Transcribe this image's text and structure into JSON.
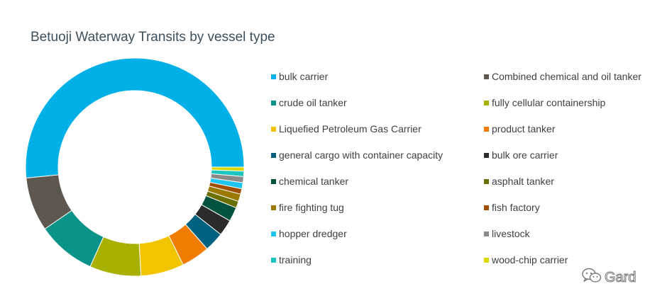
{
  "chart_data": {
    "type": "pie",
    "title": "Betuoji Waterway Transits by vessel type",
    "legend_position": "right",
    "categories": [
      "bulk carrier",
      "Combined chemical and oil tanker",
      "crude oil tanker",
      "fully cellular containership",
      "Liquefied Petroleum Gas Carrier",
      "product tanker",
      "general cargo with container capacity",
      "bulk ore carrier",
      "chemical tanker",
      "asphalt tanker",
      "fire fighting tug",
      "fish factory",
      "hopper dredger",
      "livestock",
      "training",
      "wood-chip carrier"
    ],
    "values": [
      51.6,
      8.0,
      8.7,
      7.6,
      6.4,
      4.2,
      2.9,
      2.4,
      2.1,
      1.0,
      1.1,
      0.8,
      0.9,
      0.9,
      0.8,
      0.6
    ],
    "colors": [
      "#00b0e6",
      "#5e574f",
      "#0a9489",
      "#a8b000",
      "#f2c400",
      "#f07d00",
      "#00627f",
      "#2b2b2b",
      "#00543f",
      "#6b7000",
      "#9a7a00",
      "#a04e00",
      "#1fc5f0",
      "#8a8a8a",
      "#1dc5c0",
      "#d8d800"
    ]
  },
  "watermark": {
    "text": "Gard",
    "icon": "wechat-icon"
  }
}
